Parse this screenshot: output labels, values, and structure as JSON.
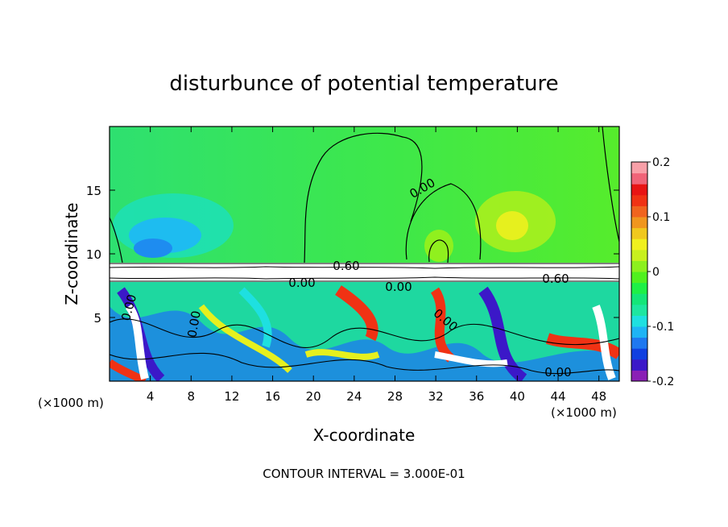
{
  "chart_data": {
    "type": "heatmap",
    "title": "disturbunce of potential temperature",
    "xlabel": "X-coordinate",
    "ylabel": "Z-coordinate",
    "x_unit_label": "(×1000 m)",
    "x_unit_label_right": "(×1000 m)",
    "xlim": [
      0,
      50
    ],
    "ylim": [
      0,
      20
    ],
    "x_ticks": [
      4,
      8,
      12,
      16,
      20,
      24,
      28,
      32,
      36,
      40,
      44,
      48
    ],
    "y_ticks": [
      5,
      10,
      15
    ],
    "contour_interval_text": "CONTOUR INTERVAL = 3.000E-01",
    "contour_labels": [
      "0.00",
      "0.60",
      "0.00",
      "0.00",
      "0.60",
      "0.00",
      "0.00",
      "0.00",
      "0.00"
    ],
    "colorbar": {
      "range": [
        -0.2,
        0.2
      ],
      "tick_labels": [
        "0.2",
        "0.1",
        "0",
        "-0.1",
        "-0.2"
      ],
      "tick_values": [
        0.2,
        0.1,
        0,
        -0.1,
        -0.2
      ],
      "colors": [
        "#8a1fb5",
        "#3b18c8",
        "#1040e0",
        "#1e78f0",
        "#1eb4f5",
        "#1ee0e0",
        "#1ee6a0",
        "#14e678",
        "#1ef046",
        "#50f01e",
        "#8cf01e",
        "#c8f01e",
        "#f0f01e",
        "#f0c81e",
        "#f0961e",
        "#f0641e",
        "#f03214",
        "#e81414",
        "#f06478",
        "#f8a0a8"
      ]
    },
    "grid": false
  }
}
